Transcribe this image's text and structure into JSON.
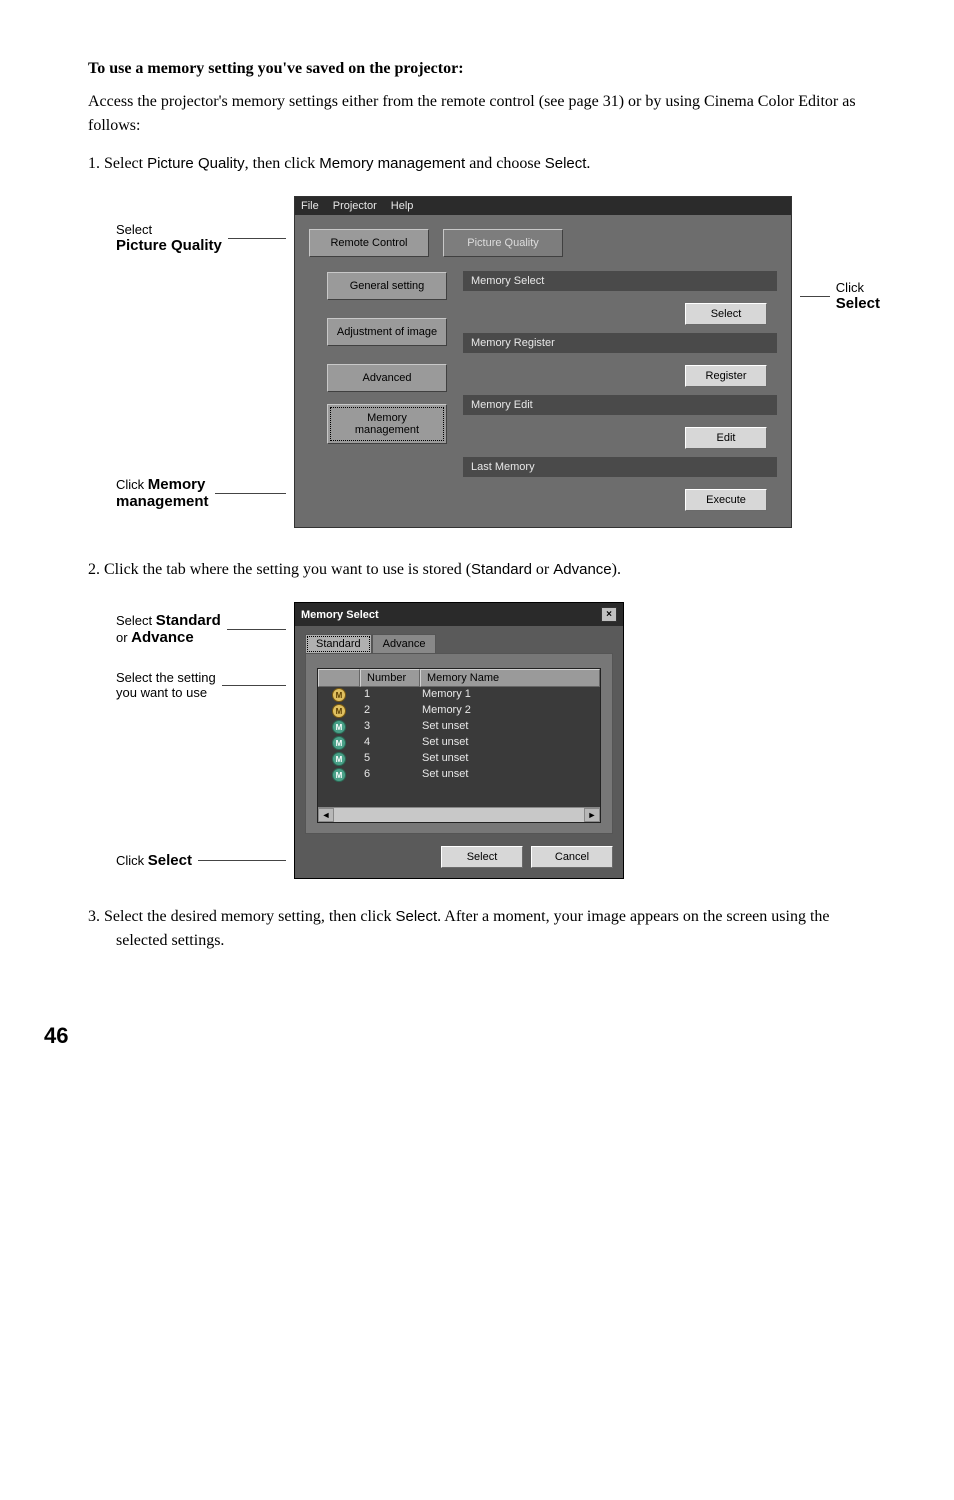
{
  "heading": "To use a memory setting you've saved on the projector:",
  "intro": "Access the projector's memory settings either from the remote control (see page 31) or by using Cinema Color Editor as follows:",
  "step1_prefix": "1.   Select ",
  "step1_t1": "Picture Quality",
  "step1_mid1": ", then click ",
  "step1_t2": "Memory management",
  "step1_mid2": " and choose ",
  "step1_t3": "Select",
  "step1_end": ".",
  "labels1": {
    "left_top1": "Select",
    "left_top2": "Picture Quality",
    "left_bot1": "Click ",
    "left_bot1b": "Memory",
    "left_bot2": "management",
    "right1": "Click",
    "right2": "Select"
  },
  "win1": {
    "menu": {
      "file": "File",
      "projector": "Projector",
      "help": "Help"
    },
    "tabs_top": {
      "remote": "Remote Control",
      "pq": "Picture Quality"
    },
    "side": {
      "general": "General setting",
      "adjust": "Adjustment of image",
      "advanced": "Advanced",
      "memmgmt": "Memory management"
    },
    "sections": {
      "memsel": "Memory Select",
      "memreg": "Memory Register",
      "memedit": "Memory Edit",
      "last": "Last Memory"
    },
    "buttons": {
      "select": "Select",
      "register": "Register",
      "edit": "Edit",
      "execute": "Execute"
    }
  },
  "step2_prefix": "2.   Click the tab where the setting you want to use is stored (",
  "step2_t1": "Standard",
  "step2_mid": " or ",
  "step2_t2": "Advance",
  "step2_end": ").",
  "labels2": {
    "left_a1": "Select ",
    "left_a1b": "Standard",
    "left_a2a": "or ",
    "left_a2b": "Advance",
    "left_b1": "Select the setting",
    "left_b2": "you want to use",
    "left_c": "Click ",
    "left_cb": "Select"
  },
  "win2": {
    "title": "Memory Select",
    "tabs": {
      "standard": "Standard",
      "advance": "Advance"
    },
    "cols": {
      "num": "Number",
      "name": "Memory Name"
    },
    "rows": [
      {
        "n": "1",
        "name": "Memory 1",
        "saved": true
      },
      {
        "n": "2",
        "name": "Memory 2",
        "saved": true
      },
      {
        "n": "3",
        "name": "Set unset",
        "saved": false
      },
      {
        "n": "4",
        "name": "Set unset",
        "saved": false
      },
      {
        "n": "5",
        "name": "Set unset",
        "saved": false
      },
      {
        "n": "6",
        "name": "Set unset",
        "saved": false
      }
    ],
    "buttons": {
      "select": "Select",
      "cancel": "Cancel"
    }
  },
  "step3_prefix": "3.   Select the desired memory setting, then click ",
  "step3_t1": "Select",
  "step3_end": ". After a moment, your image appears on the screen using the selected settings.",
  "page_number": "46"
}
